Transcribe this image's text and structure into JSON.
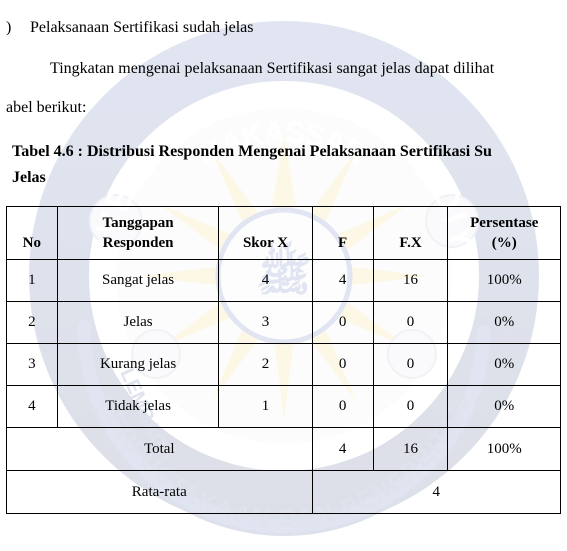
{
  "bullet": {
    "marker": ")",
    "text": "Pelaksanaan Sertifikasi sudah jelas"
  },
  "paragraph": "Tingkatan mengenai pelaksanaan Sertifikasi sangat  jelas dapat dilihat",
  "paragraph_tail": "abel berikut:",
  "caption_line1": "Tabel 4.6 :  Distribusi Responden Mengenai Pelaksanaan Sertifikasi Su",
  "caption_line2": "Jelas",
  "table": {
    "headers": {
      "no": "No",
      "resp_top": "Tanggapan",
      "resp_bottom": "Responden",
      "skor": "Skor X",
      "f": "F",
      "fx": "F.X",
      "pct_top": "Persentase",
      "pct_bottom": "(%)"
    },
    "rows": [
      {
        "no": "1",
        "resp": "Sangat jelas",
        "skor": "4",
        "f": "4",
        "fx": "16",
        "pct": "100%"
      },
      {
        "no": "2",
        "resp": "Jelas",
        "skor": "3",
        "f": "0",
        "fx": "0",
        "pct": "0%"
      },
      {
        "no": "3",
        "resp": "Kurang jelas",
        "skor": "2",
        "f": "0",
        "fx": "0",
        "pct": "0%"
      },
      {
        "no": "4",
        "resp": "Tidak jelas",
        "skor": "1",
        "f": "0",
        "fx": "0",
        "pct": "0%"
      }
    ],
    "total": {
      "label": "Total",
      "f": "4",
      "fx": "16",
      "pct": "100%"
    },
    "rata": {
      "label": "Rata-rata",
      "value": "4"
    }
  },
  "watermark": {
    "outer_color": "#1d3f86",
    "inner_color": "#1d3f86",
    "burst_color": "#ffd23a",
    "text_color": "#1d3f86",
    "rope_color": "#143073",
    "flower_color": "#e6e8ef"
  }
}
